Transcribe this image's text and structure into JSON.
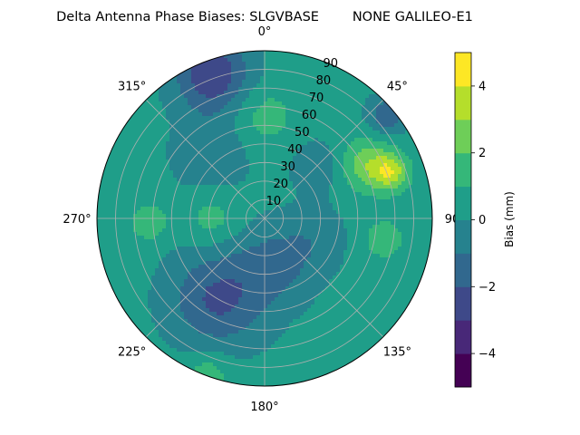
{
  "chart_data": {
    "type": "heatmap",
    "projection": "polar",
    "title": "Delta Antenna Phase Biases: SLGVBASE        NONE GALILEO-E1",
    "azimuth_labels": [
      {
        "deg": 0,
        "label": "0°"
      },
      {
        "deg": 45,
        "label": "45°"
      },
      {
        "deg": 90,
        "label": "90"
      },
      {
        "deg": 135,
        "label": "135°"
      },
      {
        "deg": 180,
        "label": "180°"
      },
      {
        "deg": 225,
        "label": "225°"
      },
      {
        "deg": 270,
        "label": "270°"
      },
      {
        "deg": 315,
        "label": "315°"
      }
    ],
    "radial_ticks": [
      10,
      20,
      30,
      40,
      50,
      60,
      70,
      80,
      90
    ],
    "radial_range": [
      0,
      90
    ],
    "azimuth_direction": "clockwise",
    "azimuth_zero": "top",
    "grid": true,
    "colorbar": {
      "label": "Bias (mm)",
      "range": [
        -5,
        5
      ],
      "ticks": [
        -4,
        -2,
        0,
        2,
        4
      ],
      "levels": [
        -5,
        -4.5,
        -4,
        -3.5,
        -3,
        -2.5,
        -2,
        -1.5,
        -1,
        -0.5,
        0,
        0.5,
        1,
        1.5,
        2,
        2.5,
        3,
        3.5,
        4,
        4.5,
        5
      ],
      "colormap": "viridis",
      "colors": [
        "#440154",
        "#482878",
        "#3e4989",
        "#31688e",
        "#26828e",
        "#1f9e89",
        "#35b779",
        "#6ece58",
        "#b5de2b",
        "#fde725"
      ]
    },
    "field": {
      "description_units": "bias in mm at (azimuth deg, zenith deg)",
      "base": 0.3,
      "blobs": [
        {
          "az": 340,
          "r": 82,
          "amp": -3.2,
          "s": 14
        },
        {
          "az": 0,
          "r": 55,
          "amp": 1.2,
          "s": 12
        },
        {
          "az": 62,
          "r": 62,
          "amp": 2.3,
          "s": 10
        },
        {
          "az": 70,
          "r": 72,
          "amp": 3.0,
          "s": 7
        },
        {
          "az": 50,
          "r": 86,
          "amp": -2.2,
          "s": 7
        },
        {
          "az": 100,
          "r": 65,
          "amp": 1.2,
          "s": 9
        },
        {
          "az": 270,
          "r": 28,
          "amp": 1.2,
          "s": 10
        },
        {
          "az": 268,
          "r": 62,
          "amp": 1.6,
          "s": 7
        },
        {
          "az": 210,
          "r": 50,
          "amp": -2.5,
          "s": 18
        },
        {
          "az": 165,
          "r": 25,
          "amp": -1.5,
          "s": 15
        },
        {
          "az": 320,
          "r": 45,
          "amp": -1.2,
          "s": 14
        },
        {
          "az": 200,
          "r": 90,
          "amp": 1.4,
          "s": 9
        },
        {
          "az": 45,
          "r": 40,
          "amp": -1.0,
          "s": 10
        },
        {
          "az": 110,
          "r": 30,
          "amp": -0.8,
          "s": 12
        }
      ]
    }
  }
}
